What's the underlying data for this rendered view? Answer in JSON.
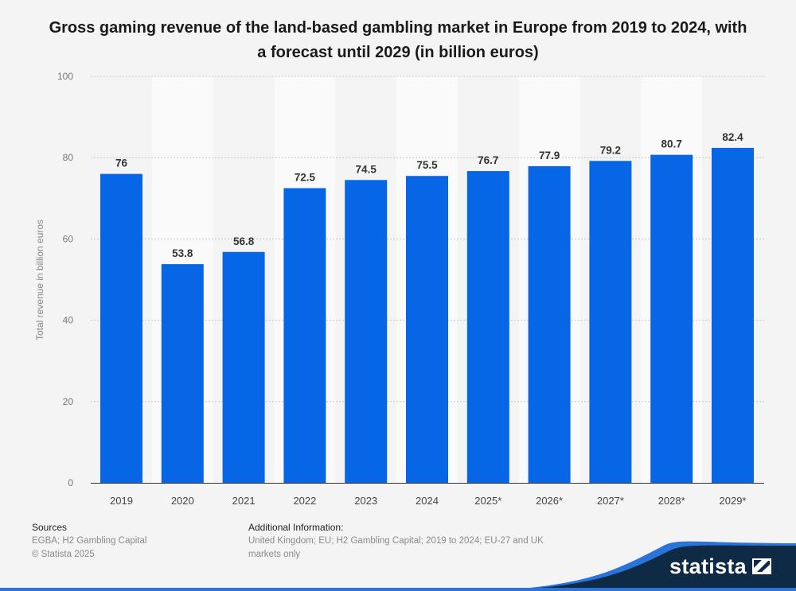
{
  "chart_data": {
    "type": "bar",
    "title": "Gross gaming revenue of the land-based gambling market in Europe from 2019 to 2024, with a forecast until 2029 (in billion euros)",
    "categories": [
      "2019",
      "2020",
      "2021",
      "2022",
      "2023",
      "2024",
      "2025*",
      "2026*",
      "2027*",
      "2028*",
      "2029*"
    ],
    "values": [
      76,
      53.8,
      56.8,
      72.5,
      74.5,
      75.5,
      76.7,
      77.9,
      79.2,
      80.7,
      82.4
    ],
    "value_labels": [
      "76",
      "53.8",
      "56.8",
      "72.5",
      "74.5",
      "75.5",
      "76.7",
      "77.9",
      "79.2",
      "80.7",
      "82.4"
    ],
    "xlabel": "",
    "ylabel": "Total revenue in billion euros",
    "ylim": [
      0,
      100
    ],
    "yticks": [
      "0",
      "20",
      "40",
      "60",
      "80",
      "100"
    ],
    "grid": true,
    "bar_color": "#0766e5"
  },
  "footer": {
    "sources_heading": "Sources",
    "sources": "EGBA; H2 Gambling Capital",
    "copyright": "© Statista 2025",
    "additional_heading": "Additional Information:",
    "additional_line1": "United Kingdom; EU; H2 Gambling Capital; 2019 to 2024; EU-27 and UK",
    "additional_line2": "markets only"
  },
  "logo": {
    "text": "statista",
    "navy": "#0f2a44",
    "blue": "#2a73d9"
  }
}
